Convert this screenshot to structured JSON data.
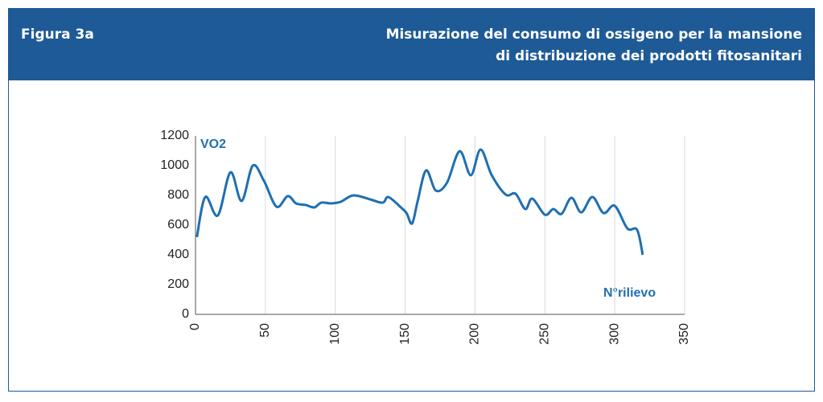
{
  "header": {
    "label": "Figura 3a",
    "title": [
      "Misurazione del consumo di ossigeno per la mansione",
      "di distribuzione dei prodotti fitosanitari"
    ]
  },
  "chart_data": {
    "type": "line",
    "y_label": "VO2",
    "x_label": "N°rilievo",
    "series": [
      {
        "name": "VO2",
        "color": "#1f6fb2",
        "x": [
          1,
          7,
          16,
          25,
          33,
          41,
          49,
          58,
          66,
          72,
          79,
          85,
          90,
          97,
          104,
          113,
          125,
          134,
          138,
          147,
          151,
          155,
          159,
          165,
          172,
          180,
          189,
          197,
          204,
          212,
          222,
          229,
          236,
          241,
          250,
          256,
          262,
          269,
          276,
          284,
          292,
          300,
          309,
          316,
          320
        ],
        "values": [
          519,
          789,
          665,
          955,
          762,
          1000,
          897,
          724,
          795,
          746,
          735,
          719,
          751,
          746,
          757,
          800,
          773,
          751,
          789,
          719,
          681,
          611,
          762,
          968,
          832,
          886,
          1097,
          935,
          1108,
          935,
          805,
          811,
          708,
          778,
          670,
          708,
          676,
          784,
          686,
          789,
          681,
          730,
          578,
          568,
          400
        ]
      }
    ],
    "xlim": [
      0,
      350
    ],
    "xticks": [
      0,
      50,
      100,
      150,
      200,
      250,
      300,
      350
    ],
    "ylim": [
      0,
      1200
    ],
    "yticks": [
      0,
      200,
      400,
      600,
      800,
      1000,
      1200
    ],
    "grid": "x"
  }
}
